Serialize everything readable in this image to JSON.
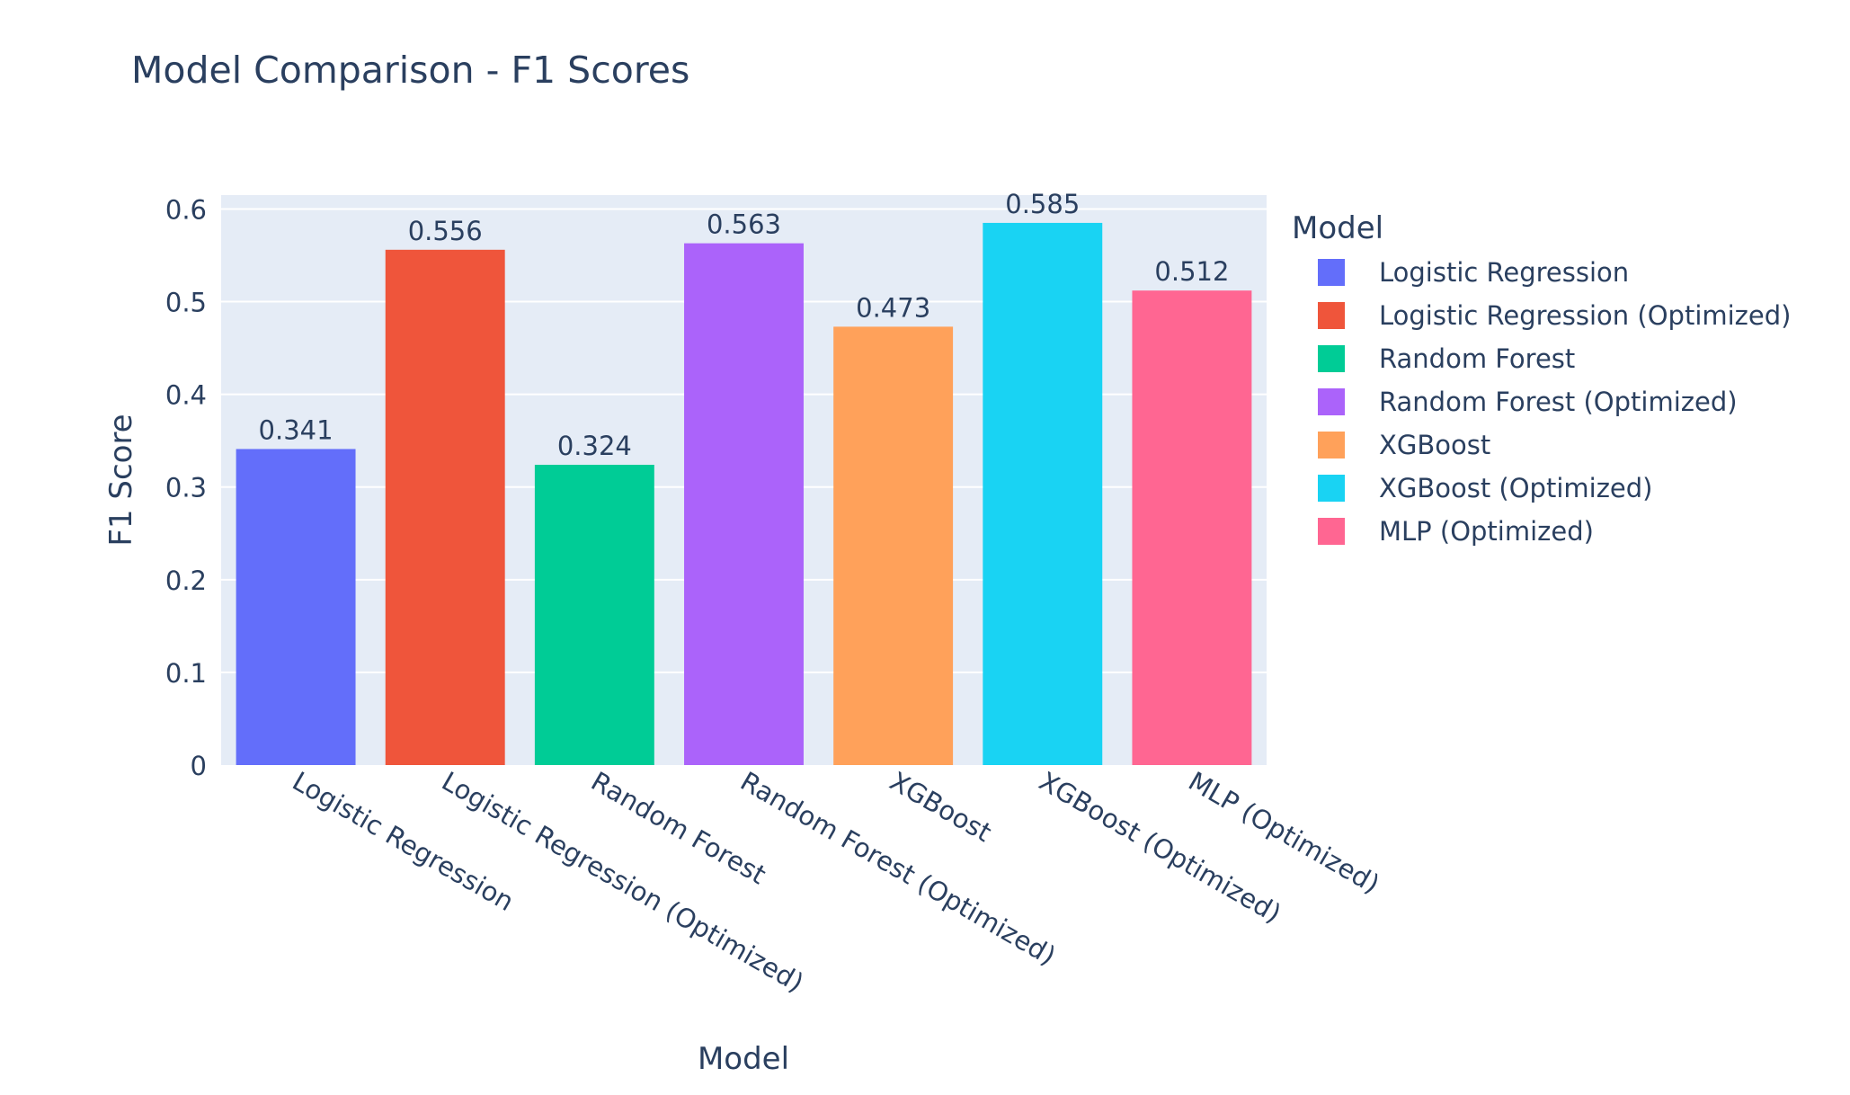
{
  "chart_data": {
    "type": "bar",
    "title": "Model Comparison - F1 Scores",
    "xlabel": "Model",
    "ylabel": "F1 Score",
    "ylim": [
      0,
      0.6
    ],
    "yticks": [
      "0",
      "0.1",
      "0.2",
      "0.3",
      "0.4",
      "0.5",
      "0.6"
    ],
    "grid": true,
    "legend_position": "right",
    "legend_title": "Model",
    "categories": [
      "Logistic Regression",
      "Logistic Regression (Optimized)",
      "Random Forest",
      "Random Forest (Optimized)",
      "XGBoost",
      "XGBoost (Optimized)",
      "MLP (Optimized)"
    ],
    "values": [
      0.341,
      0.556,
      0.324,
      0.563,
      0.473,
      0.585,
      0.512
    ],
    "value_labels": [
      "0.341",
      "0.556",
      "0.324",
      "0.563",
      "0.473",
      "0.585",
      "0.512"
    ],
    "colors": [
      "#636efa",
      "#ef553b",
      "#00cc96",
      "#ab63fa",
      "#ffa15a",
      "#19d3f3",
      "#ff6692"
    ],
    "plot_background": "#e5ecf6",
    "text_color": "#2a3f5f"
  }
}
